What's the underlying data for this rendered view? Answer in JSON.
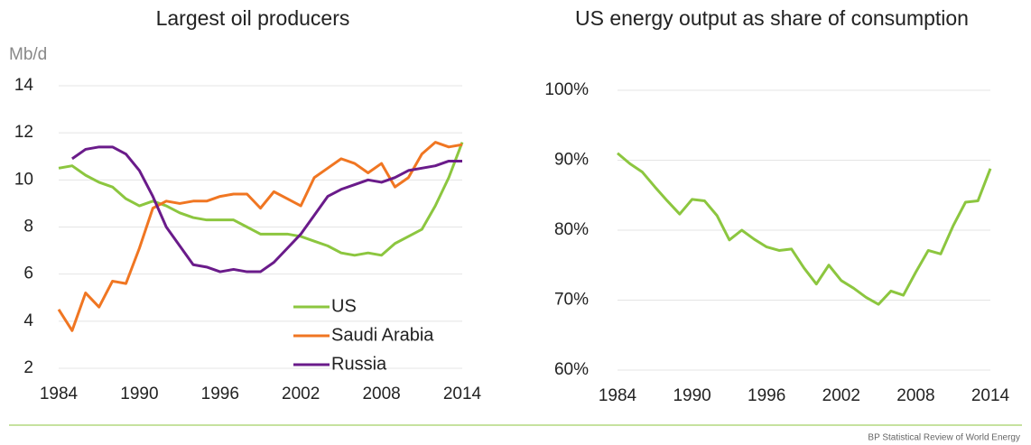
{
  "chart_data": [
    {
      "type": "line",
      "title": "Largest oil producers",
      "y_label": "Mb/d",
      "x": [
        1984,
        1985,
        1986,
        1987,
        1988,
        1989,
        1990,
        1991,
        1992,
        1993,
        1994,
        1995,
        1996,
        1997,
        1998,
        1999,
        2000,
        2001,
        2002,
        2003,
        2004,
        2005,
        2006,
        2007,
        2008,
        2009,
        2010,
        2011,
        2012,
        2013,
        2014
      ],
      "series": [
        {
          "name": "US",
          "color": "#8cc63f",
          "values": [
            10.5,
            10.6,
            10.2,
            9.9,
            9.7,
            9.2,
            8.9,
            9.1,
            8.9,
            8.6,
            8.4,
            8.3,
            8.3,
            8.3,
            8.0,
            7.7,
            7.7,
            7.7,
            7.6,
            7.4,
            7.2,
            6.9,
            6.8,
            6.9,
            6.8,
            7.3,
            7.6,
            7.9,
            8.9,
            10.1,
            11.6
          ]
        },
        {
          "name": "Saudi Arabia",
          "color": "#f07622",
          "values": [
            4.5,
            3.6,
            5.2,
            4.6,
            5.7,
            5.6,
            7.1,
            8.8,
            9.1,
            9.0,
            9.1,
            9.1,
            9.3,
            9.4,
            9.4,
            8.8,
            9.5,
            9.2,
            8.9,
            10.1,
            10.5,
            10.9,
            10.7,
            10.3,
            10.7,
            9.7,
            10.1,
            11.1,
            11.6,
            11.4,
            11.5
          ]
        },
        {
          "name": "Russia",
          "color": "#6a1b8a",
          "values": [
            null,
            10.9,
            11.3,
            11.4,
            11.4,
            11.1,
            10.4,
            9.3,
            8.0,
            7.2,
            6.4,
            6.3,
            6.1,
            6.2,
            6.1,
            6.1,
            6.5,
            7.1,
            7.7,
            8.5,
            9.3,
            9.6,
            9.8,
            10.0,
            9.9,
            10.1,
            10.4,
            10.5,
            10.6,
            10.8,
            10.8
          ]
        }
      ],
      "xlim": [
        1984,
        2014
      ],
      "xticks": [
        1984,
        1990,
        1996,
        2002,
        2008,
        2014
      ],
      "ylim": [
        2,
        14
      ],
      "yticks": [
        2,
        4,
        6,
        8,
        10,
        12,
        14
      ],
      "grid": true,
      "legend": "lower right"
    },
    {
      "type": "line",
      "title": "US energy output as share of consumption",
      "x": [
        1984,
        1985,
        1986,
        1987,
        1988,
        1989,
        1990,
        1991,
        1992,
        1993,
        1994,
        1995,
        1996,
        1997,
        1998,
        1999,
        2000,
        2001,
        2002,
        2003,
        2004,
        2005,
        2006,
        2007,
        2008,
        2009,
        2010,
        2011,
        2012,
        2013,
        2014
      ],
      "color": "#8cc63f",
      "values": [
        91.0,
        89.5,
        88.3,
        86.2,
        84.2,
        82.3,
        84.4,
        84.2,
        82.1,
        78.6,
        80.0,
        78.7,
        77.6,
        77.1,
        77.3,
        74.6,
        72.3,
        75.0,
        72.8,
        71.7,
        70.4,
        69.4,
        71.3,
        70.7,
        74.0,
        77.1,
        76.6,
        80.6,
        84.0,
        84.2,
        88.8
      ],
      "xlim": [
        1984,
        2014
      ],
      "xticks": [
        1984,
        1990,
        1996,
        2002,
        2008,
        2014
      ],
      "ylim": [
        60,
        100
      ],
      "yticks": [
        {
          "value": 60,
          "label": "60%"
        },
        {
          "value": 70,
          "label": "70%"
        },
        {
          "value": 80,
          "label": "80%"
        },
        {
          "value": 90,
          "label": "90%"
        },
        {
          "value": 100,
          "label": "100%"
        }
      ],
      "grid": true
    }
  ],
  "source": "BP Statistical Review of World Energy"
}
